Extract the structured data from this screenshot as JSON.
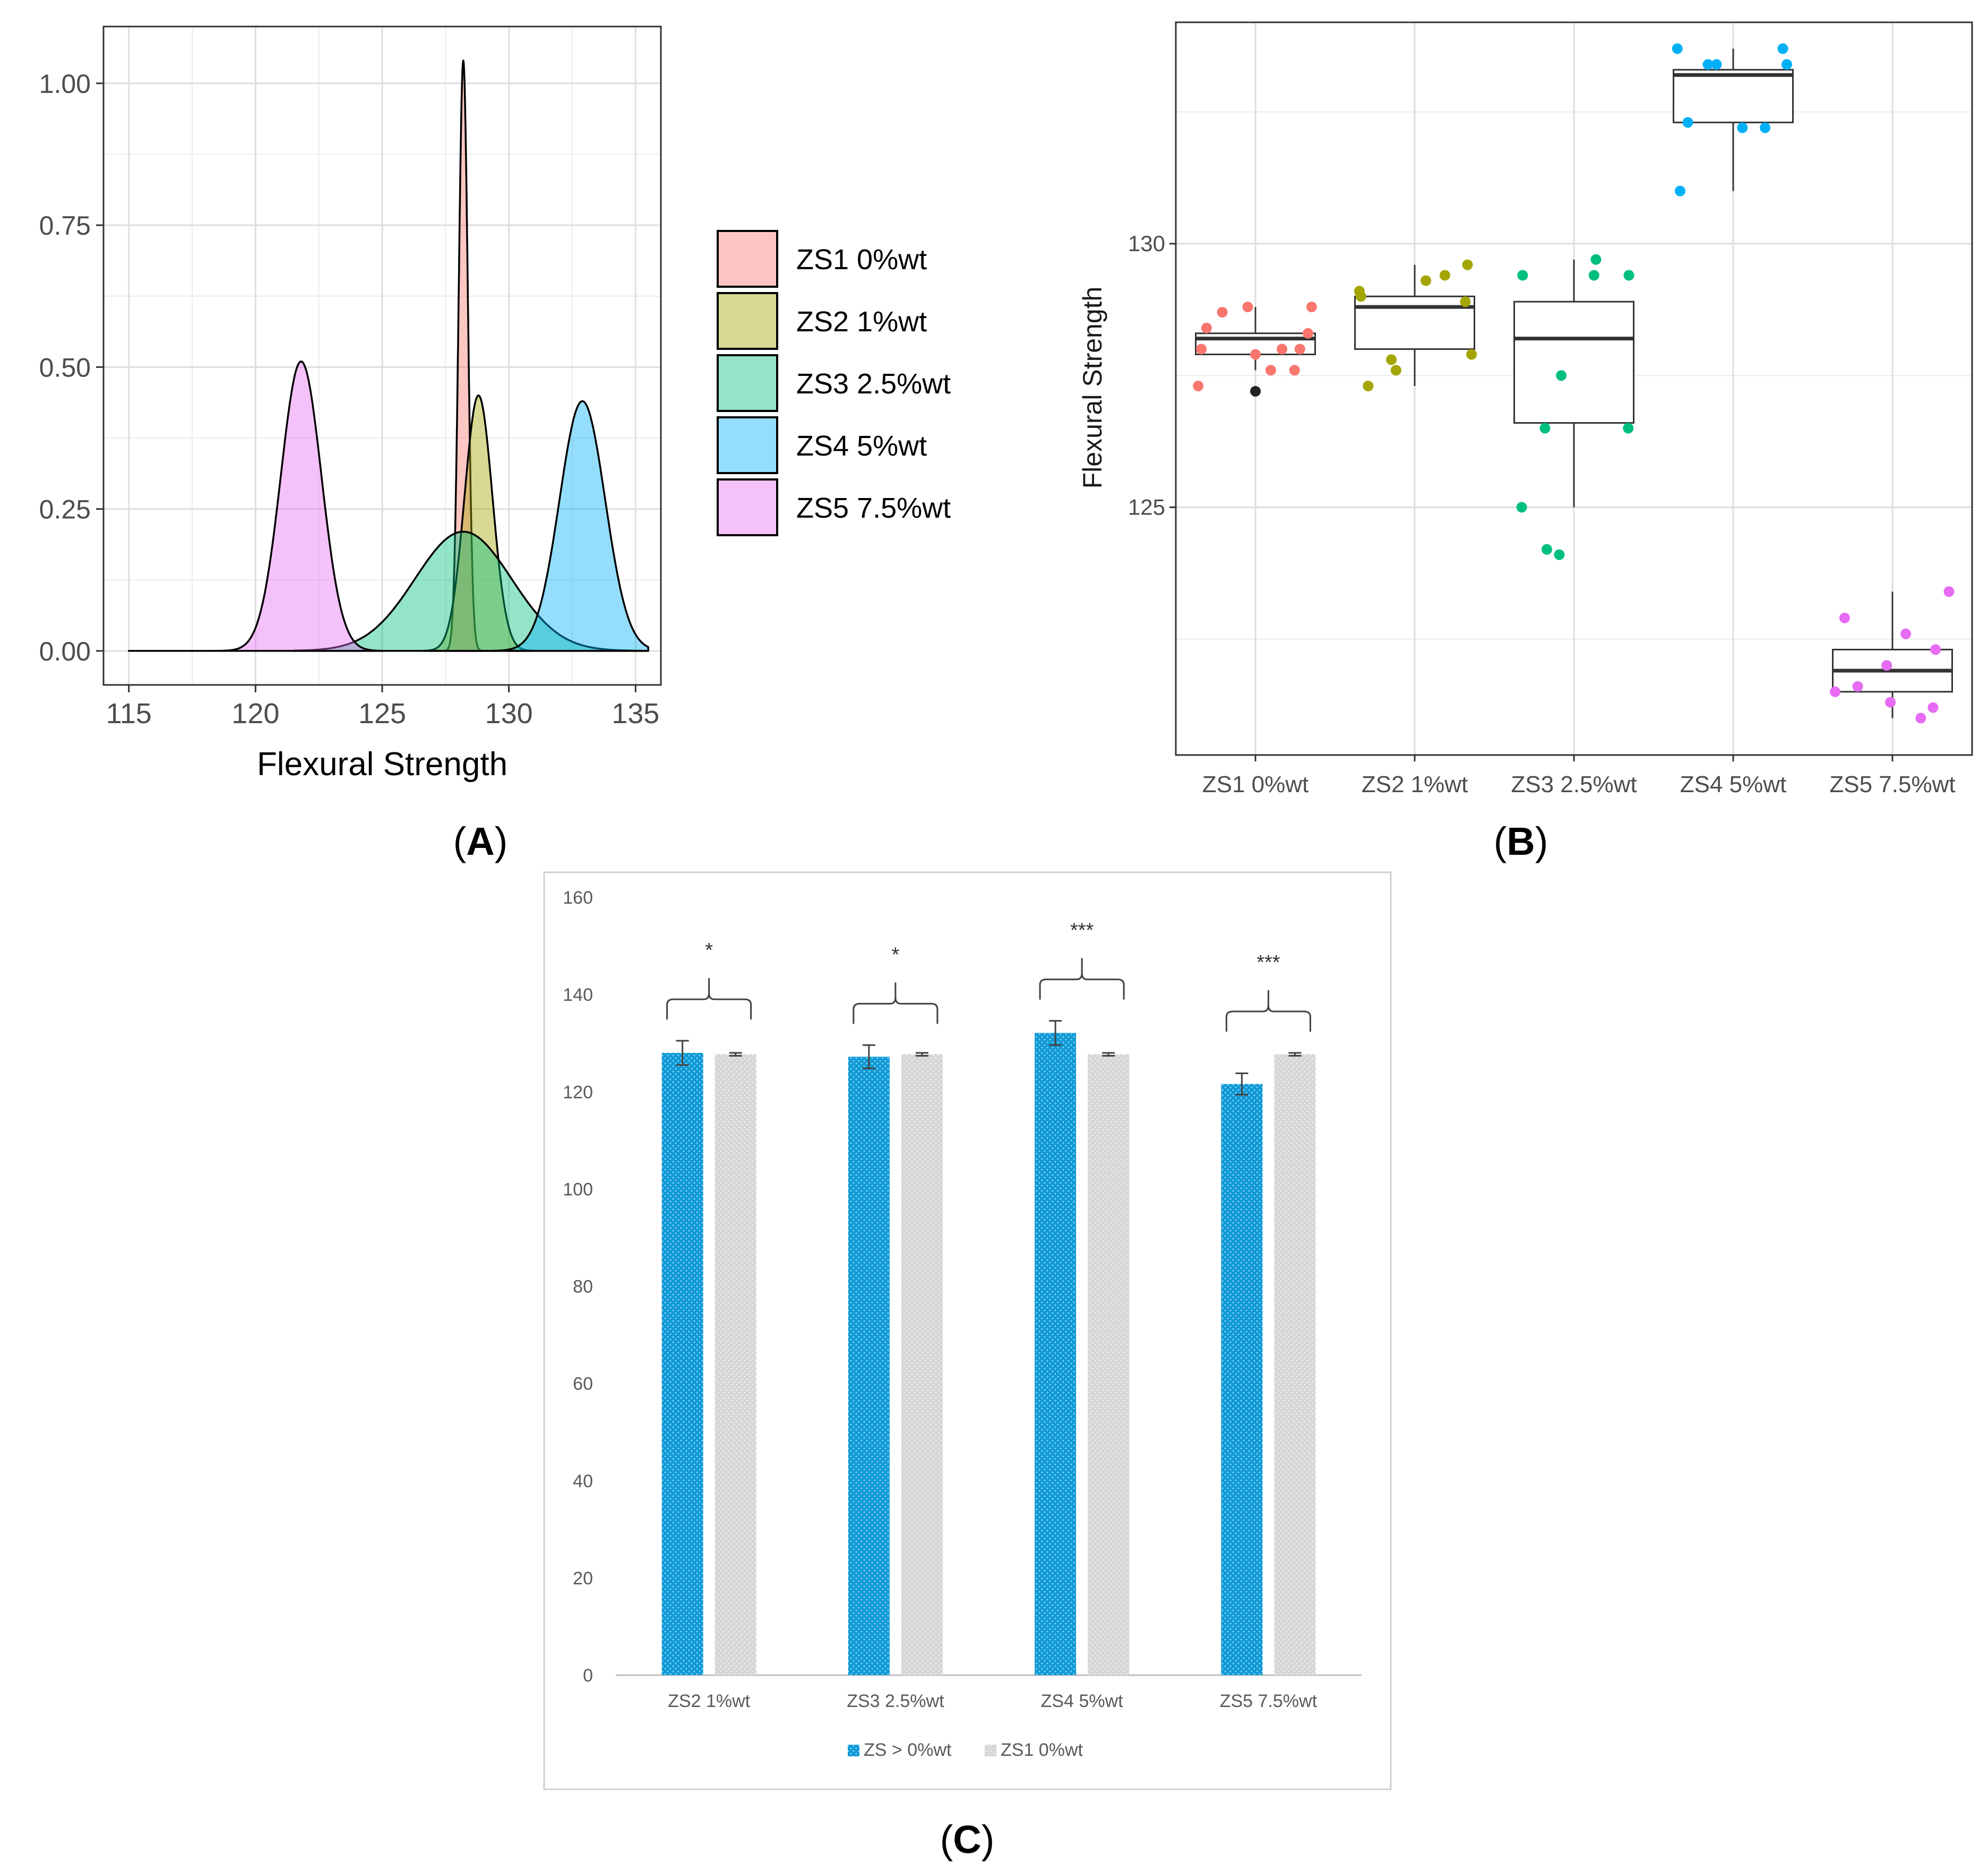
{
  "chart_data": [
    {
      "panel": "A",
      "type": "area",
      "subtype": "density",
      "xlabel": "Flexural Strength",
      "ylabel": "",
      "xlim": [
        114,
        136
      ],
      "ylim": [
        -0.06,
        1.1
      ],
      "xticks": [
        "115",
        "120",
        "125",
        "130",
        "135"
      ],
      "xtick_values": [
        115,
        120,
        125,
        130,
        135
      ],
      "yticks": [
        "0.00",
        "0.25",
        "0.50",
        "0.75",
        "1.00"
      ],
      "ytick_values": [
        0,
        0.25,
        0.5,
        0.75,
        1.0
      ],
      "grid": true,
      "legend_position": "right",
      "series": [
        {
          "name": "ZS1 0%wt",
          "color": "#F8766D",
          "mean": 128.2,
          "sd": 0.18,
          "peak": 1.04,
          "range": [
            127.4,
            129.0
          ]
        },
        {
          "name": "ZS2 1%wt",
          "color": "#A3A500",
          "mean": 128.8,
          "sd": 0.55,
          "peak": 0.45,
          "range": [
            126.6,
            131.0
          ]
        },
        {
          "name": "ZS3 2.5%wt",
          "color": "#00BF7D",
          "mean": 128.2,
          "sd": 1.9,
          "peak": 0.21,
          "range": [
            121.5,
            135.5
          ]
        },
        {
          "name": "ZS4 5%wt",
          "color": "#00B0F6",
          "mean": 132.9,
          "sd": 0.9,
          "peak": 0.44,
          "range": [
            128.5,
            135.5
          ]
        },
        {
          "name": "ZS5 7.5%wt",
          "color": "#E76BF3",
          "mean": 121.8,
          "sd": 0.8,
          "peak": 0.51,
          "range": [
            115,
            125
          ]
        }
      ]
    },
    {
      "panel": "B",
      "type": "box",
      "xlabel": "",
      "ylabel": "Flexural Strength",
      "ylim": [
        120.3,
        134.2
      ],
      "yticks": [
        "125",
        "130"
      ],
      "ytick_values": [
        125,
        130
      ],
      "categories": [
        "ZS1 0%wt",
        "ZS2 1%wt",
        "ZS3 2.5%wt",
        "ZS4 5%wt",
        "ZS5 7.5%wt"
      ],
      "grid": true,
      "legend_position": "none",
      "boxes": [
        {
          "name": "ZS1 0%wt",
          "color": "#F8766D",
          "min": 127.6,
          "q1": 127.9,
          "median": 128.2,
          "q3": 128.3,
          "max": 128.8,
          "outliers": [
            127.2
          ],
          "points": [
            127.9,
            127.6,
            127.3,
            128.0,
            128.8,
            128.7,
            128.8,
            128.4,
            127.6,
            128.0,
            128.0,
            128.3
          ]
        },
        {
          "name": "ZS2 1%wt",
          "color": "#A3A500",
          "min": 127.3,
          "q1": 128.0,
          "median": 128.8,
          "q3": 129.0,
          "max": 129.6,
          "points": [
            127.9,
            127.3,
            129.3,
            129.4,
            129.1,
            128.9,
            127.6,
            127.8,
            129.6,
            129.0
          ]
        },
        {
          "name": "ZS3 2.5%wt",
          "color": "#00BF7D",
          "min": 125.0,
          "q1": 126.6,
          "median": 128.2,
          "q3": 128.9,
          "max": 129.7,
          "points": [
            124.1,
            124.2,
            126.5,
            125.0,
            129.7,
            129.4,
            129.4,
            129.4,
            126.5,
            127.5
          ]
        },
        {
          "name": "ZS4 5%wt",
          "color": "#00B0F6",
          "min": 131.0,
          "q1": 132.3,
          "median": 133.2,
          "q3": 133.3,
          "max": 133.7,
          "points": [
            131.0,
            133.4,
            133.4,
            133.4,
            133.7,
            133.7,
            132.2,
            132.2,
            132.3
          ]
        },
        {
          "name": "ZS5 7.5%wt",
          "color": "#E76BF3",
          "min": 121.0,
          "q1": 121.5,
          "median": 121.9,
          "q3": 122.3,
          "max": 123.4,
          "points": [
            121.0,
            122.6,
            122.9,
            123.4,
            121.6,
            122.0,
            122.3,
            121.5,
            121.2,
            121.3
          ]
        }
      ]
    },
    {
      "panel": "C",
      "type": "bar",
      "xlabel": "",
      "ylabel": "",
      "ylim": [
        0,
        160
      ],
      "yticks": [
        "0",
        "20",
        "40",
        "60",
        "80",
        "100",
        "120",
        "140",
        "160"
      ],
      "ytick_values": [
        0,
        20,
        40,
        60,
        80,
        100,
        120,
        140,
        160
      ],
      "categories": [
        "ZS2 1%wt",
        "ZS3 2.5%wt",
        "ZS4 5%wt",
        "ZS5 7.5%wt"
      ],
      "grid": false,
      "legend_position": "bottom",
      "series": [
        {
          "name": "ZS > 0%wt",
          "color": "#0F9AD6",
          "values": [
            128.0,
            127.2,
            132.1,
            121.6
          ],
          "errors": [
            2.5,
            2.4,
            2.5,
            2.2
          ]
        },
        {
          "name": "ZS1 0%wt",
          "color": "#D9D9D9",
          "values": [
            127.7,
            127.7,
            127.7,
            127.7
          ],
          "errors": [
            0.3,
            0.3,
            0.3,
            0.3
          ]
        }
      ],
      "significance": [
        "*",
        "*",
        "***",
        "***"
      ]
    }
  ],
  "panel_labels": {
    "A": "A",
    "B": "B",
    "C": "C"
  }
}
